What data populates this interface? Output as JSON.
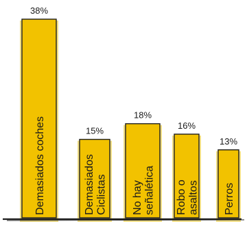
{
  "chart_data": {
    "type": "bar",
    "categories": [
      "Demasiados coches",
      "Demasiados Ciclistas",
      "No hay señalética",
      "Robo o asaltos",
      "Perros"
    ],
    "category_lines": [
      [
        "Demasiados coches"
      ],
      [
        "Demasiados",
        "Ciclistas"
      ],
      [
        "No hay",
        "señalética"
      ],
      [
        "Robo o",
        "asaltos"
      ],
      [
        "Perros"
      ]
    ],
    "values": [
      38,
      15,
      18,
      16,
      13
    ],
    "value_labels": [
      "38%",
      "15%",
      "18%",
      "16%",
      "13%"
    ],
    "ylim": [
      0,
      40
    ],
    "bar_color": "#f2c200",
    "fill_color": "#ecd35a",
    "outline_color": "#1f1f1f",
    "grid": false,
    "legend": "none"
  }
}
